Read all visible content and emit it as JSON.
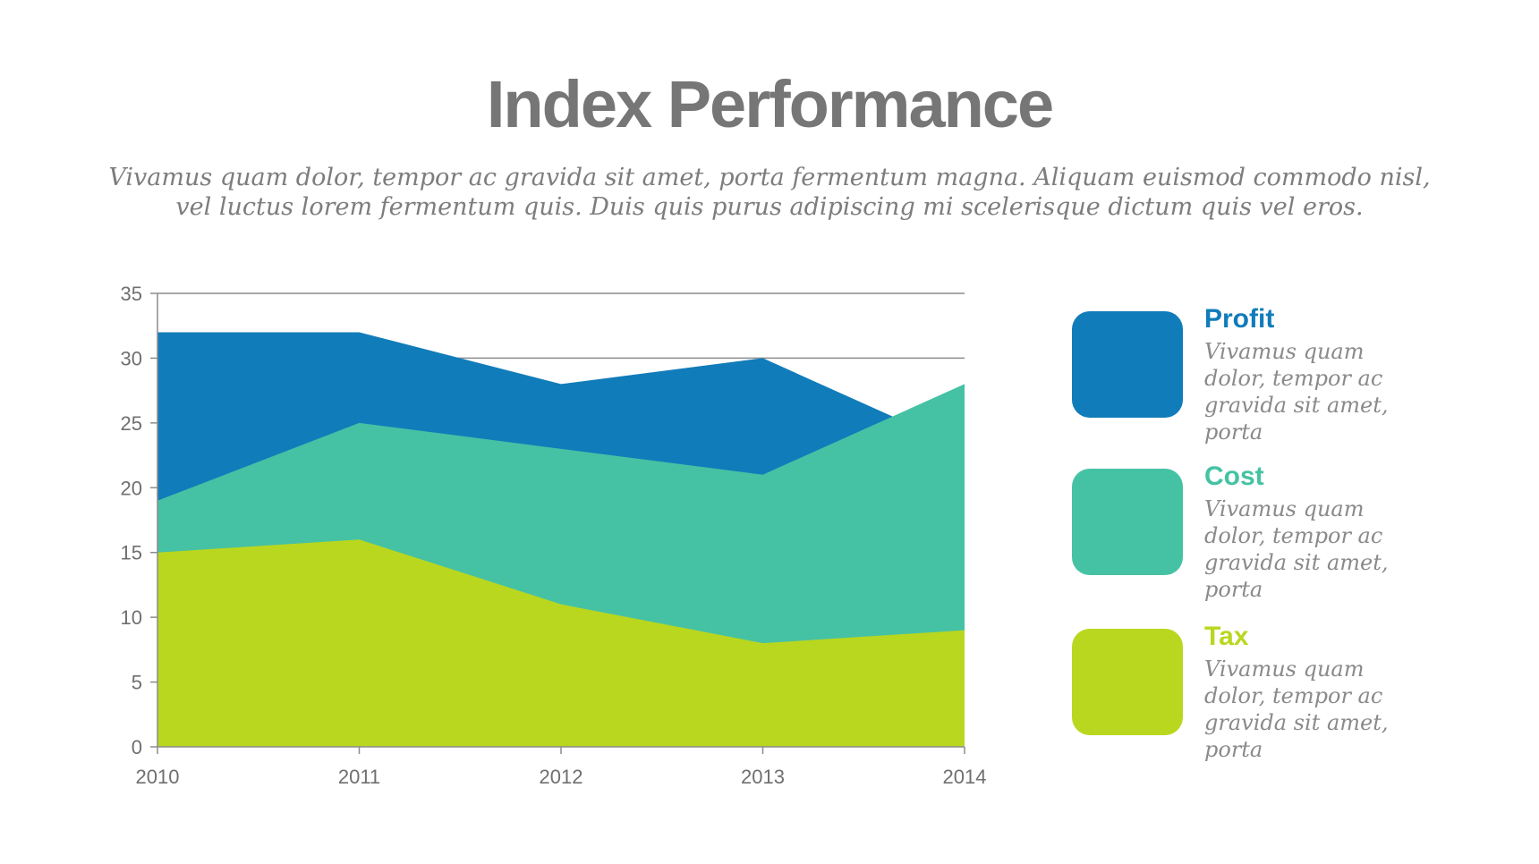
{
  "title": "Index Performance",
  "subtitle": "Vivamus quam dolor, tempor ac gravida sit amet, porta fermentum magna. Aliquam euismod commodo nisl, vel luctus lorem fermentum quis. Duis quis purus adipiscing mi scelerisque dictum quis vel eros.",
  "legend": [
    {
      "name": "Profit",
      "desc": "Vivamus quam dolor, tempor ac gravida sit amet, porta",
      "color": "#117cba"
    },
    {
      "name": "Cost",
      "desc": "Vivamus quam dolor, tempor ac gravida sit amet, porta",
      "color": "#45c2a4"
    },
    {
      "name": "Tax",
      "desc": "Vivamus quam dolor, tempor ac gravida sit amet, porta",
      "color": "#b9d71f"
    }
  ],
  "chart_data": {
    "type": "area",
    "x": [
      "2010",
      "2011",
      "2012",
      "2013",
      "2014"
    ],
    "ylim": [
      0,
      35
    ],
    "yticks": [
      "0",
      "5",
      "10",
      "15",
      "20",
      "25",
      "30",
      "35"
    ],
    "grid": "horizontal",
    "legend_position": "right",
    "series": [
      {
        "name": "Profit",
        "values": [
          32,
          32,
          28,
          30,
          23
        ],
        "color": "#117cba"
      },
      {
        "name": "Cost",
        "values": [
          19,
          25,
          23,
          21,
          28
        ],
        "color": "#45c2a4"
      },
      {
        "name": "Tax",
        "values": [
          15,
          16,
          11,
          8,
          9
        ],
        "color": "#b9d71f"
      }
    ]
  }
}
